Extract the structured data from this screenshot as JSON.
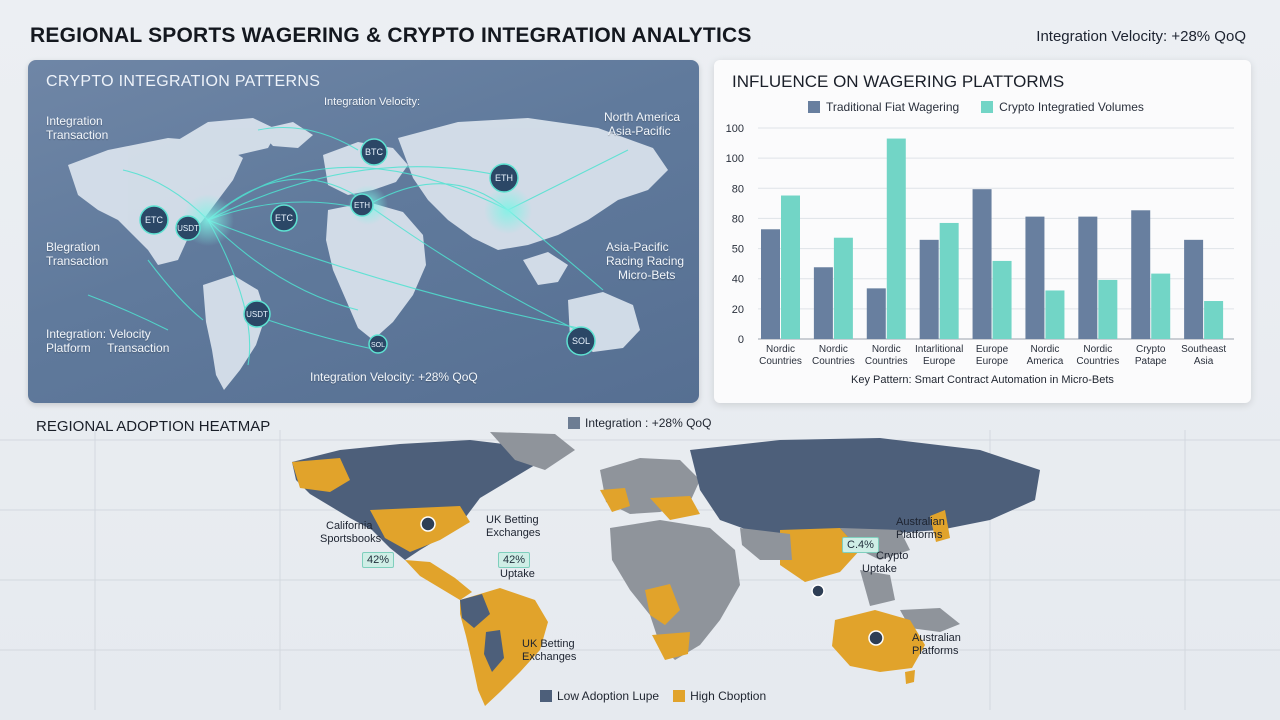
{
  "header": {
    "title": "REGIONAL SPORTS WAGERING & CRYPTO INTEGRATION ANALYTICS",
    "velocity": "Integration Velocity: +28% QoQ"
  },
  "map_panel": {
    "title": "CRYPTO INTEGRATION PATTERNS",
    "labels": {
      "top_velocity": "Integration Velocity:",
      "integration_transaction_1": "Integration",
      "integration_transaction_2": "Transaction",
      "blegration_1": "Blegration",
      "blegration_2": "Transaction",
      "bottom_left_1": "Integration: Velocity",
      "bottom_left_2": "Platform     Transaction",
      "north_america": "North America",
      "asia_pacific_top": "Asia-Pacific",
      "asia_pacific_right": "Asia-Pacific",
      "racing": "Racing Racing",
      "micro_bets": "Micro-Bets",
      "bottom_velocity": "Integration Velocity: +28% QoQ"
    },
    "tokens": {
      "btc_top": "BTC",
      "eth_right": "ETH",
      "etc_left": "ETC",
      "usdt_left": "USDT",
      "etc_mid": "ETC",
      "eth_euro": "ETH",
      "usdt_sa": "USDT",
      "sol": "SOL",
      "sol_africa": "SOL"
    },
    "colors": {
      "accent": "#38d3c4",
      "land": "#dbe4ee"
    }
  },
  "chart_panel": {
    "title": "INFLUENCE ON WAGERING PLATTORMS",
    "legend": [
      "Traditional Fiat Wagering",
      "Crypto Integratied Volumes"
    ],
    "key_pattern": "Key Pattern: Smart Contract Automation in Micro-Bets"
  },
  "chart_data": {
    "type": "bar",
    "title": "INFLUENCE ON WAGERING PLATTORMS",
    "xlabel": "",
    "ylabel": "",
    "y_ticks": [
      "0",
      "20",
      "40",
      "50",
      "80",
      "80",
      "100",
      "100"
    ],
    "ylim": [
      0,
      100
    ],
    "categories": [
      "Nordic Countries",
      "Nordic Countries",
      "Nordic Countries",
      "Intarlitional Europe",
      "Europe Europe",
      "Nordic America",
      "Nordic Countries",
      "Crypto Patape",
      "Southeast Asia"
    ],
    "series": [
      {
        "name": "Traditional Fiat Wagering",
        "color": "#687f9f",
        "values": [
          52,
          34,
          24,
          47,
          71,
          58,
          58,
          61,
          47
        ]
      },
      {
        "name": "Crypto Integratied Volumes",
        "color": "#72d5c6",
        "values": [
          68,
          48,
          95,
          55,
          37,
          23,
          28,
          31,
          18
        ]
      }
    ],
    "grid": true,
    "legend_position": "top"
  },
  "heatmap": {
    "title": "REGIONAL ADOPTION HEATMAP",
    "top_legend": "Integration : +28% QoQ",
    "labels": {
      "california_1": "California",
      "california_2": "Sportsbooks",
      "uk_top_1": "UK Betting",
      "uk_top_2": "Exchanges",
      "uptake": "Uptake",
      "uk_bottom_1": "UK Betting",
      "uk_bottom_2": "Exchanges",
      "australian_top_1": "Australian",
      "australian_top_2": "Platforms",
      "crypto_1": "Crypto",
      "crypto_2": "Uptake",
      "australian_bottom_1": "Australian",
      "australian_bottom_2": "Platforms"
    },
    "badges": {
      "california": "42%",
      "uk": "42%",
      "asia": "C.4%"
    },
    "legend": [
      "Low Adoption Lupe",
      "High Cboption"
    ],
    "colors": {
      "low": "#4d5f7a",
      "high": "#e1a32b",
      "neutral": "#8f949b"
    }
  }
}
